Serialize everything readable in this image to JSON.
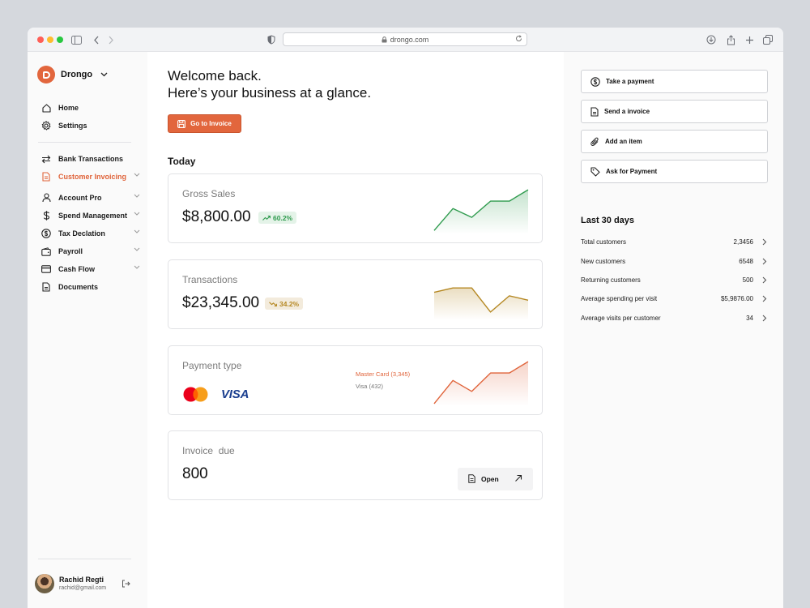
{
  "browser": {
    "url": "drongo.com",
    "traffic_lights": [
      "#fe5f57",
      "#febc2e",
      "#28c840"
    ]
  },
  "brand": {
    "name": "Drongo",
    "accent": "#e2663d"
  },
  "sidebar": {
    "primary": [
      {
        "label": "Home",
        "icon": "home-icon"
      },
      {
        "label": "Settings",
        "icon": "gear-icon"
      }
    ],
    "secondary": [
      {
        "label": "Bank Transactions",
        "icon": "swap-arrows-icon",
        "expandable": false,
        "active": false
      },
      {
        "label": "Customer Invoicing",
        "icon": "invoice-icon",
        "expandable": true,
        "active": true
      },
      {
        "label": "Account Pro",
        "icon": "user-icon",
        "expandable": true,
        "active": false
      },
      {
        "label": "Spend Management",
        "icon": "dollar-icon",
        "expandable": true,
        "active": false
      },
      {
        "label": "Tax Declation",
        "icon": "dollar-circle-icon",
        "expandable": true,
        "active": false
      },
      {
        "label": "Payroll",
        "icon": "wallet-icon",
        "expandable": true,
        "active": false
      },
      {
        "label": "Cash Flow",
        "icon": "card-icon",
        "expandable": true,
        "active": false
      },
      {
        "label": "Documents",
        "icon": "document-icon",
        "expandable": false,
        "active": false
      }
    ],
    "user": {
      "name": "Rachid Regti",
      "email": "rachid@gmail.com"
    }
  },
  "main": {
    "welcome_line1": "Welcome back.",
    "welcome_line2": "Here’s your business at a glance.",
    "cta_label": "Go to Invoice",
    "section_title": "Today",
    "cards": {
      "gross_sales": {
        "label": "Gross Sales",
        "value": "$8,800.00",
        "change": "60.2%",
        "trend": "up",
        "color": "#2f9b4e",
        "badge_bg": "#e4f3e8",
        "spark": [
          0.05,
          0.55,
          0.35,
          0.72,
          0.72,
          0.98
        ]
      },
      "transactions": {
        "label": "Transactions",
        "value": "$23,345.00",
        "change": "34.2%",
        "trend": "down",
        "color": "#b58823",
        "badge_bg": "#f3ebdc",
        "spark": [
          0.6,
          0.7,
          0.7,
          0.15,
          0.52,
          0.42
        ]
      },
      "payment_type": {
        "label": "Payment type",
        "legend_mastercard": "Master Card (3,345)",
        "legend_visa": "Visa (432)",
        "visa_text": "VISA",
        "color": "#e0643b",
        "spark": [
          0.02,
          0.55,
          0.3,
          0.72,
          0.72,
          0.98
        ]
      },
      "invoice_due": {
        "label": "Invoice  due",
        "value": "800",
        "button_label": "Open"
      }
    }
  },
  "right": {
    "actions": [
      {
        "label": "Take a payment",
        "icon": "dollar-circle-icon"
      },
      {
        "label": "Send a invoice",
        "icon": "document-icon"
      },
      {
        "label": "Add an item",
        "icon": "paperclip-icon"
      },
      {
        "label": "Ask for Payment",
        "icon": "tag-icon"
      }
    ],
    "stats_title": "Last 30 days",
    "stats": [
      {
        "label": "Total customers",
        "value": "2,3456"
      },
      {
        "label": "New customers",
        "value": "6548"
      },
      {
        "label": "Returning customers",
        "value": "500"
      },
      {
        "label": "Average spending per visit",
        "value": "$5,9876.00"
      },
      {
        "label": "Average visits per customer",
        "value": "34"
      }
    ]
  }
}
